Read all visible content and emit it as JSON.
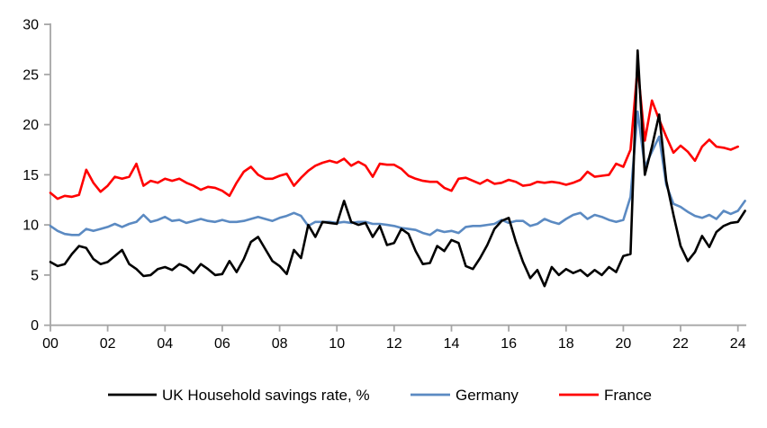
{
  "chart_data": {
    "type": "line",
    "title": "",
    "grid": false,
    "legend_position": "bottom",
    "x_axis": {
      "label": "",
      "unit": "year (2000s), quarterly points",
      "range": [
        0,
        24.25
      ],
      "tick_positions": [
        0,
        2,
        4,
        6,
        8,
        10,
        12,
        14,
        16,
        18,
        20,
        22,
        24
      ],
      "tick_labels": [
        "00",
        "02",
        "04",
        "06",
        "08",
        "10",
        "12",
        "14",
        "16",
        "18",
        "20",
        "22",
        "24"
      ]
    },
    "y_axis": {
      "label": "",
      "range": [
        0,
        30
      ],
      "tick_values": [
        0,
        5,
        10,
        15,
        20,
        25,
        30
      ],
      "tick_labels": [
        "0",
        "5",
        "10",
        "15",
        "20",
        "25",
        "30"
      ]
    },
    "axis_color": "#a6a6a6",
    "x_start": 0,
    "x_step": 0.25,
    "series": [
      {
        "name": "UK Household savings rate, %",
        "color": "#000000",
        "values": [
          6.3,
          5.9,
          6.1,
          7.1,
          7.9,
          7.7,
          6.6,
          6.1,
          6.3,
          6.9,
          7.5,
          6.1,
          5.6,
          4.9,
          5.0,
          5.6,
          5.8,
          5.5,
          6.1,
          5.8,
          5.2,
          6.1,
          5.6,
          5.0,
          5.1,
          6.4,
          5.3,
          6.6,
          8.3,
          8.8,
          7.6,
          6.4,
          5.9,
          5.1,
          7.5,
          6.7,
          10.0,
          8.8,
          10.3,
          10.2,
          10.1,
          12.4,
          10.3,
          10.0,
          10.2,
          8.8,
          9.9,
          8.0,
          8.2,
          9.6,
          9.1,
          7.4,
          6.1,
          6.2,
          7.9,
          7.4,
          8.5,
          8.2,
          5.9,
          5.6,
          6.7,
          8.0,
          9.6,
          10.4,
          10.7,
          8.3,
          6.3,
          4.7,
          5.5,
          3.9,
          5.8,
          5.0,
          5.6,
          5.2,
          5.5,
          4.9,
          5.5,
          5.0,
          5.8,
          5.3,
          6.9,
          7.1,
          27.4,
          15.0,
          17.8,
          21.0,
          14.4,
          11.0,
          7.9,
          6.4,
          7.3,
          8.9,
          7.8,
          9.3,
          9.9,
          10.2,
          10.3,
          11.4
        ]
      },
      {
        "name": "Germany",
        "color": "#5b8ac2",
        "values": [
          9.9,
          9.4,
          9.1,
          9.0,
          9.0,
          9.6,
          9.4,
          9.6,
          9.8,
          10.1,
          9.8,
          10.1,
          10.3,
          11.0,
          10.3,
          10.5,
          10.8,
          10.4,
          10.5,
          10.2,
          10.4,
          10.6,
          10.4,
          10.3,
          10.5,
          10.3,
          10.3,
          10.4,
          10.6,
          10.8,
          10.6,
          10.4,
          10.7,
          10.9,
          11.2,
          10.9,
          9.9,
          10.3,
          10.3,
          10.3,
          10.2,
          10.3,
          10.2,
          10.3,
          10.3,
          10.1,
          10.1,
          10.0,
          9.9,
          9.7,
          9.6,
          9.5,
          9.2,
          9.0,
          9.5,
          9.3,
          9.4,
          9.2,
          9.8,
          9.9,
          9.9,
          10.0,
          10.1,
          10.5,
          10.2,
          10.4,
          10.4,
          9.9,
          10.1,
          10.6,
          10.3,
          10.1,
          10.6,
          11.0,
          11.2,
          10.6,
          11.0,
          10.8,
          10.5,
          10.3,
          10.5,
          12.8,
          21.3,
          15.8,
          17.3,
          18.8,
          14.0,
          12.1,
          11.8,
          11.3,
          10.9,
          10.7,
          11.0,
          10.6,
          11.4,
          11.1,
          11.4,
          12.4
        ]
      },
      {
        "name": "France",
        "color": "#ff0000",
        "values": [
          13.2,
          12.6,
          12.9,
          12.8,
          13.0,
          15.5,
          14.2,
          13.3,
          13.9,
          14.8,
          14.6,
          14.8,
          16.1,
          13.9,
          14.4,
          14.2,
          14.6,
          14.4,
          14.6,
          14.2,
          13.9,
          13.5,
          13.8,
          13.7,
          13.4,
          12.9,
          14.2,
          15.3,
          15.8,
          15.0,
          14.6,
          14.6,
          14.9,
          15.1,
          13.9,
          14.7,
          15.4,
          15.9,
          16.2,
          16.4,
          16.2,
          16.6,
          15.9,
          16.3,
          15.9,
          14.8,
          16.1,
          16.0,
          16.0,
          15.6,
          14.9,
          14.6,
          14.4,
          14.3,
          14.3,
          13.7,
          13.4,
          14.6,
          14.7,
          14.4,
          14.1,
          14.5,
          14.1,
          14.2,
          14.5,
          14.3,
          13.9,
          14.0,
          14.3,
          14.2,
          14.3,
          14.2,
          14.0,
          14.2,
          14.5,
          15.3,
          14.8,
          14.9,
          15.0,
          16.1,
          15.8,
          17.5,
          25.8,
          18.4,
          22.4,
          20.5,
          18.8,
          17.2,
          17.9,
          17.3,
          16.4,
          17.8,
          18.5,
          17.8,
          17.7,
          17.5,
          17.8
        ]
      }
    ]
  }
}
